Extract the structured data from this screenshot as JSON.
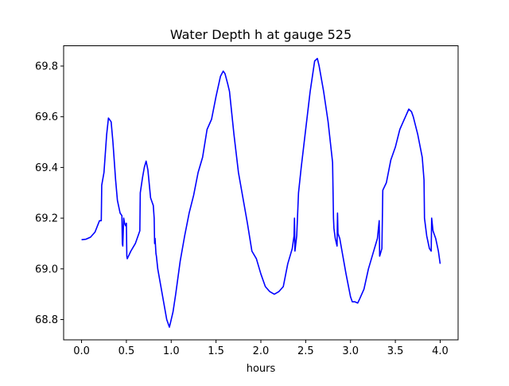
{
  "chart_data": {
    "type": "line",
    "title": "Water Depth h at gauge 525",
    "xlabel": "hours",
    "ylabel": "",
    "xlim": [
      -0.2,
      4.2
    ],
    "ylim": [
      68.72,
      69.88
    ],
    "xticks": [
      "0.0",
      "0.5",
      "1.0",
      "1.5",
      "2.0",
      "2.5",
      "3.0",
      "3.5",
      "4.0"
    ],
    "yticks": [
      "68.8",
      "69.0",
      "69.2",
      "69.4",
      "69.6",
      "69.8"
    ],
    "grid": false,
    "line_color": "#0000ff",
    "series": [
      {
        "x": [
          0.0,
          0.05,
          0.1,
          0.15,
          0.2,
          0.22,
          0.225,
          0.25,
          0.28,
          0.3,
          0.33,
          0.35,
          0.38,
          0.4,
          0.43,
          0.45,
          0.455,
          0.46,
          0.47,
          0.48,
          0.49,
          0.5,
          0.505,
          0.51,
          0.55,
          0.6,
          0.65,
          0.655,
          0.68,
          0.7,
          0.72,
          0.74,
          0.77,
          0.8,
          0.81,
          0.815,
          0.82,
          0.83,
          0.835,
          0.85,
          0.9,
          0.95,
          0.98,
          1.0,
          1.02,
          1.05,
          1.1,
          1.15,
          1.2,
          1.25,
          1.3,
          1.35,
          1.4,
          1.45,
          1.5,
          1.55,
          1.58,
          1.6,
          1.63,
          1.65,
          1.7,
          1.75,
          1.8,
          1.85,
          1.9,
          1.95,
          2.0,
          2.03,
          2.05,
          2.1,
          2.15,
          2.2,
          2.25,
          2.3,
          2.35,
          2.37,
          2.375,
          2.38,
          2.4,
          2.42,
          2.45,
          2.5,
          2.55,
          2.6,
          2.63,
          2.65,
          2.7,
          2.75,
          2.8,
          2.81,
          2.815,
          2.83,
          2.85,
          2.855,
          2.86,
          2.88,
          2.9,
          2.95,
          3.0,
          3.02,
          3.05,
          3.08,
          3.1,
          3.15,
          3.2,
          3.25,
          3.3,
          3.32,
          3.325,
          3.35,
          3.36,
          3.4,
          3.45,
          3.5,
          3.55,
          3.6,
          3.65,
          3.68,
          3.7,
          3.75,
          3.8,
          3.82,
          3.825,
          3.85,
          3.88,
          3.9,
          3.905,
          3.92,
          3.95,
          3.98,
          4.0
        ],
        "y": [
          69.115,
          69.117,
          69.125,
          69.145,
          69.19,
          69.19,
          69.33,
          69.38,
          69.53,
          69.595,
          69.58,
          69.5,
          69.35,
          69.27,
          69.22,
          69.21,
          69.1,
          69.09,
          69.2,
          69.18,
          69.17,
          69.18,
          69.05,
          69.04,
          69.07,
          69.1,
          69.15,
          69.3,
          69.36,
          69.4,
          69.425,
          69.39,
          69.28,
          69.25,
          69.2,
          69.1,
          69.12,
          69.06,
          69.05,
          69.0,
          68.9,
          68.8,
          68.77,
          68.8,
          68.83,
          68.9,
          69.03,
          69.13,
          69.22,
          69.29,
          69.38,
          69.44,
          69.55,
          69.59,
          69.68,
          69.76,
          69.78,
          69.77,
          69.73,
          69.7,
          69.53,
          69.38,
          69.28,
          69.18,
          69.07,
          69.04,
          68.98,
          68.95,
          68.93,
          68.91,
          68.9,
          68.91,
          68.93,
          69.02,
          69.08,
          69.13,
          69.2,
          69.07,
          69.13,
          69.3,
          69.4,
          69.55,
          69.7,
          69.82,
          69.83,
          69.8,
          69.7,
          69.58,
          69.42,
          69.2,
          69.16,
          69.12,
          69.09,
          69.22,
          69.14,
          69.12,
          69.08,
          68.98,
          68.89,
          68.87,
          68.87,
          68.865,
          68.88,
          68.92,
          69.0,
          69.06,
          69.12,
          69.19,
          69.05,
          69.08,
          69.31,
          69.34,
          69.43,
          69.48,
          69.55,
          69.59,
          69.63,
          69.62,
          69.6,
          69.53,
          69.44,
          69.35,
          69.2,
          69.13,
          69.08,
          69.07,
          69.2,
          69.15,
          69.12,
          69.07,
          69.02
        ]
      }
    ]
  }
}
